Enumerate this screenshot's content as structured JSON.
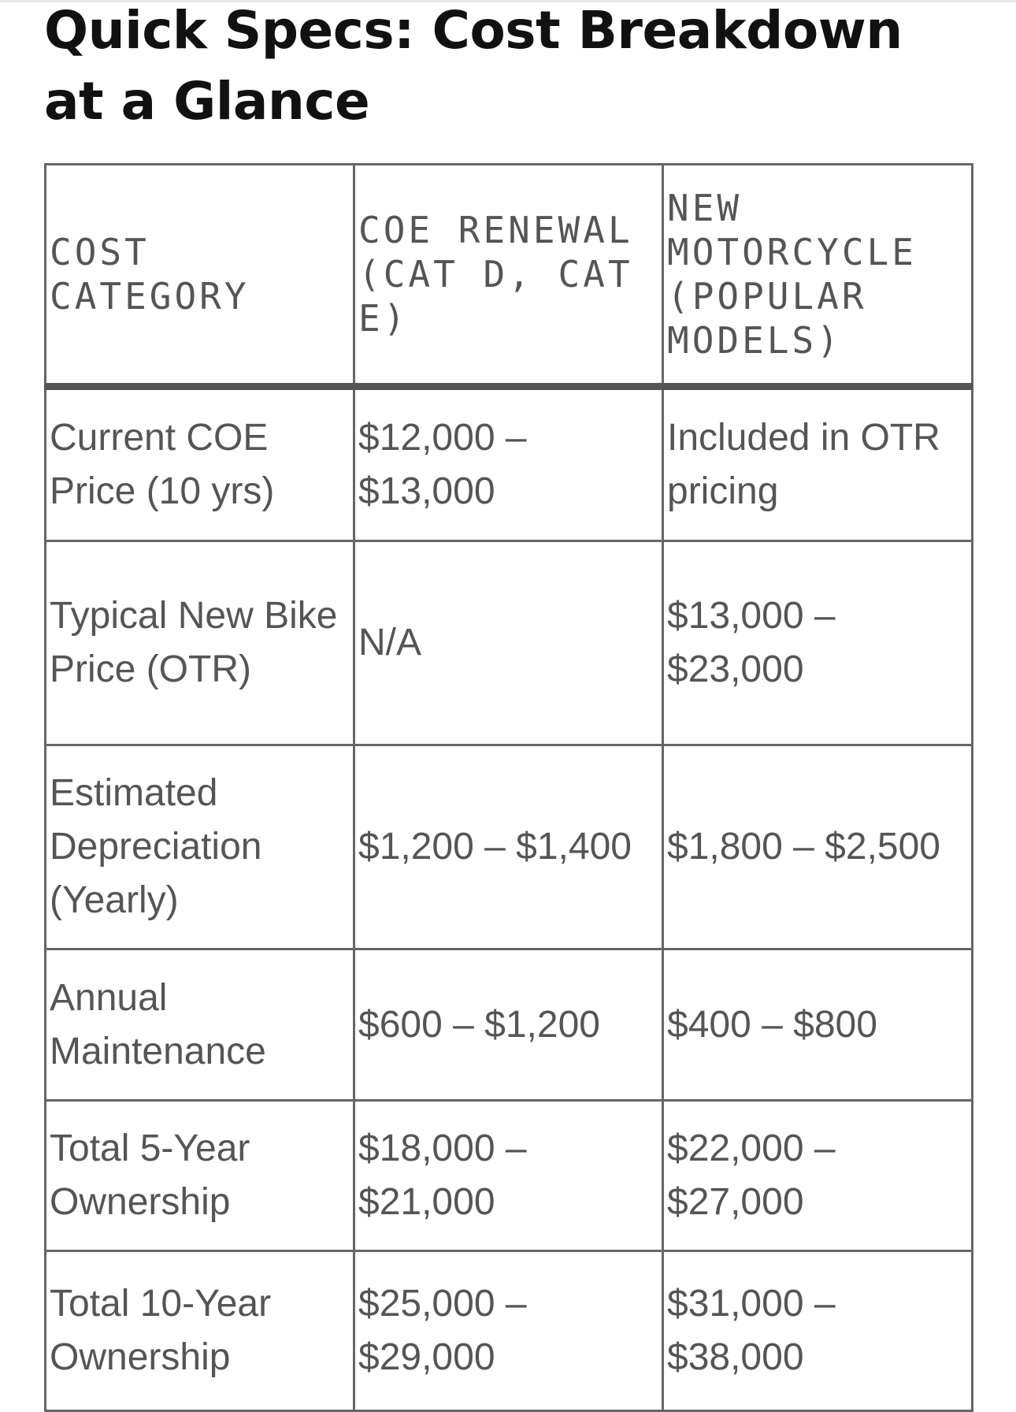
{
  "title": "Quick Specs: Cost Breakdown at a Glance",
  "table": {
    "headers": [
      "COST CATEGORY",
      "COE RENEWAL (CAT D, CAT E)",
      "NEW MOTORCYCLE (POPULAR MODELS)"
    ],
    "rows": [
      [
        "Current COE Price (10 yrs)",
        "$12,000 – $13,000",
        "Included in OTR pricing"
      ],
      [
        "Typical New Bike Price (OTR)",
        "N/A",
        "$13,000 – $23,000"
      ],
      [
        "Estimated Depreciation (Yearly)",
        "$1,200 – $1,400",
        "$1,800 – $2,500"
      ],
      [
        "Annual Maintenance",
        "$600 – $1,200",
        "$400 – $800"
      ],
      [
        "Total 5-Year Ownership",
        "$18,000 – $21,000",
        "$22,000 – $27,000"
      ],
      [
        "Total 10-Year Ownership",
        "$25,000 – $29,000",
        "$31,000 – $38,000"
      ]
    ]
  }
}
